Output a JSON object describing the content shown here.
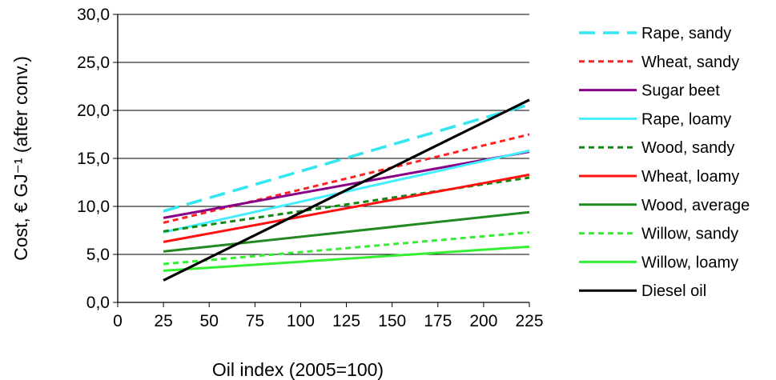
{
  "chart_data": {
    "type": "line",
    "title": "",
    "xlabel": "Oil index (2005=100)",
    "ylabel": "Cost, € GJ⁻¹ (after conv.)",
    "xlim": [
      0,
      225
    ],
    "ylim": [
      0,
      30
    ],
    "x_ticks": [
      "0",
      "25",
      "50",
      "75",
      "100",
      "125",
      "150",
      "175",
      "200",
      "225"
    ],
    "x_tick_values": [
      0,
      25,
      50,
      75,
      100,
      125,
      150,
      175,
      200,
      225
    ],
    "y_ticks": [
      "0,0",
      "5,0",
      "10,0",
      "15,0",
      "20,0",
      "25,0",
      "30,0"
    ],
    "y_tick_values": [
      0,
      5,
      10,
      15,
      20,
      25,
      30
    ],
    "grid": "horizontal",
    "legend_position": "right",
    "series": [
      {
        "name": "Rape, sandy",
        "color": "#33e6f0",
        "dash": "long-dash",
        "x": [
          25,
          225
        ],
        "y": [
          9.5,
          20.6
        ]
      },
      {
        "name": "Wheat, sandy",
        "color": "#ff2222",
        "dash": "dash",
        "x": [
          25,
          225
        ],
        "y": [
          8.3,
          17.5
        ]
      },
      {
        "name": "Sugar beet",
        "color": "#880088",
        "dash": "solid",
        "x": [
          25,
          225
        ],
        "y": [
          8.8,
          15.7
        ]
      },
      {
        "name": "Rape, loamy",
        "color": "#44eeff",
        "dash": "solid",
        "x": [
          25,
          225
        ],
        "y": [
          7.3,
          15.8
        ]
      },
      {
        "name": "Wood, sandy",
        "color": "#118811",
        "dash": "dash",
        "x": [
          25,
          225
        ],
        "y": [
          7.4,
          13.0
        ]
      },
      {
        "name": "Wheat, loamy",
        "color": "#ff1111",
        "dash": "solid",
        "x": [
          25,
          225
        ],
        "y": [
          6.3,
          13.3
        ]
      },
      {
        "name": "Wood, average",
        "color": "#228822",
        "dash": "solid",
        "x": [
          25,
          225
        ],
        "y": [
          5.3,
          9.4
        ]
      },
      {
        "name": "Willow, sandy",
        "color": "#33ee33",
        "dash": "dash",
        "x": [
          25,
          225
        ],
        "y": [
          4.0,
          7.3
        ]
      },
      {
        "name": "Willow, loamy",
        "color": "#33ee33",
        "dash": "solid",
        "x": [
          25,
          225
        ],
        "y": [
          3.3,
          5.8
        ]
      },
      {
        "name": "Diesel oil",
        "color": "#000000",
        "dash": "solid",
        "x": [
          25,
          225
        ],
        "y": [
          2.3,
          21.1
        ]
      }
    ]
  }
}
